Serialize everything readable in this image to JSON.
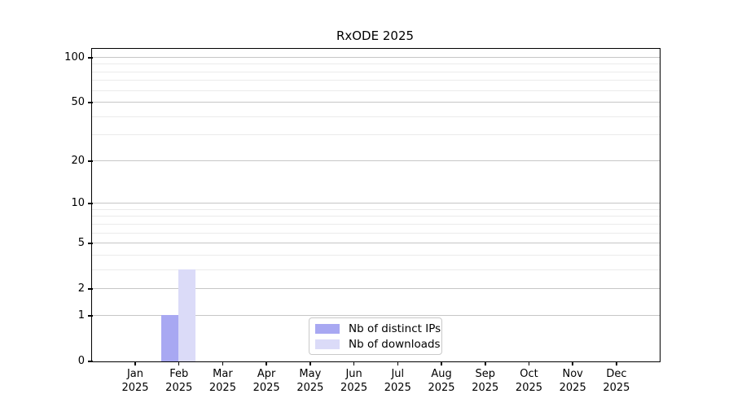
{
  "title": "RxODE 2025",
  "chart_data": {
    "type": "bar",
    "title": "RxODE 2025",
    "x_axis": {
      "months": [
        "Jan",
        "Feb",
        "Mar",
        "Apr",
        "May",
        "Jun",
        "Jul",
        "Aug",
        "Sep",
        "Oct",
        "Nov",
        "Dec"
      ],
      "year_label": "2025"
    },
    "y_axis": {
      "scale": "log10(1+value)",
      "range": [
        0,
        115
      ],
      "major_ticks": [
        0,
        1,
        2,
        5,
        10,
        20,
        50,
        100
      ],
      "minor_gridlines": [
        3,
        4,
        6,
        7,
        8,
        9,
        30,
        40,
        60,
        70,
        80,
        90
      ]
    },
    "series": [
      {
        "name": "Nb of distinct IPs",
        "color": "#a8a8f2",
        "values": [
          0,
          1,
          0,
          0,
          0,
          0,
          0,
          0,
          0,
          0,
          0,
          0
        ]
      },
      {
        "name": "Nb of downloads",
        "color": "#dbdbf8",
        "values": [
          0,
          3,
          0,
          0,
          0,
          0,
          0,
          0,
          0,
          0,
          0,
          0
        ]
      }
    ],
    "grid": true,
    "legend_position": "bottom-center",
    "colors": {
      "major_grid": "#c6c6c6",
      "minor_grid": "#ebebeb",
      "spine": "#000000",
      "background": "#ffffff"
    }
  }
}
